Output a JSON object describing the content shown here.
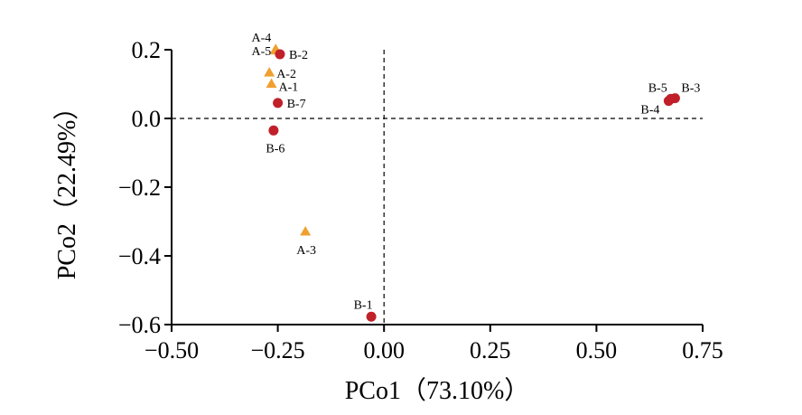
{
  "chart_data": {
    "type": "scatter",
    "xlabel": "PCo1（73.10%）",
    "ylabel": "PCo2（22.49%）",
    "xlim": [
      -0.5,
      0.75
    ],
    "ylim": [
      -0.6,
      0.2
    ],
    "xticks": [
      -0.5,
      -0.25,
      0.0,
      0.25,
      0.5,
      0.75
    ],
    "xtick_labels": [
      "−0.50",
      "−0.25",
      "0.00",
      "0.25",
      "0.50",
      "0.75"
    ],
    "yticks": [
      -0.6,
      -0.4,
      -0.2,
      0.0,
      0.2
    ],
    "ytick_labels": [
      "−0.6",
      "−0.4",
      "−0.2",
      "0.0",
      "0.2"
    ],
    "reference_lines": {
      "x": 0.0,
      "y": 0.0,
      "style": "dashed"
    },
    "grid": false,
    "legend": false,
    "series": [
      {
        "group": "A",
        "marker": "triangle",
        "color": "#F0A030",
        "points": [
          {
            "label": "A-1",
            "x": -0.265,
            "y": 0.101
          },
          {
            "label": "A-2",
            "x": -0.27,
            "y": 0.134
          },
          {
            "label": "A-3",
            "x": -0.185,
            "y": -0.329
          },
          {
            "label": "A-4",
            "x": -0.255,
            "y": 0.202
          },
          {
            "label": "A-5",
            "x": -0.255,
            "y": 0.198
          }
        ]
      },
      {
        "group": "B",
        "marker": "circle",
        "color": "#C0202A",
        "points": [
          {
            "label": "B-1",
            "x": -0.03,
            "y": -0.577
          },
          {
            "label": "B-2",
            "x": -0.245,
            "y": 0.187
          },
          {
            "label": "B-3",
            "x": 0.685,
            "y": 0.059
          },
          {
            "label": "B-4",
            "x": 0.67,
            "y": 0.051
          },
          {
            "label": "B-5",
            "x": 0.675,
            "y": 0.057
          },
          {
            "label": "B-6",
            "x": -0.26,
            "y": -0.035
          },
          {
            "label": "B-7",
            "x": -0.25,
            "y": 0.045
          }
        ]
      }
    ]
  }
}
